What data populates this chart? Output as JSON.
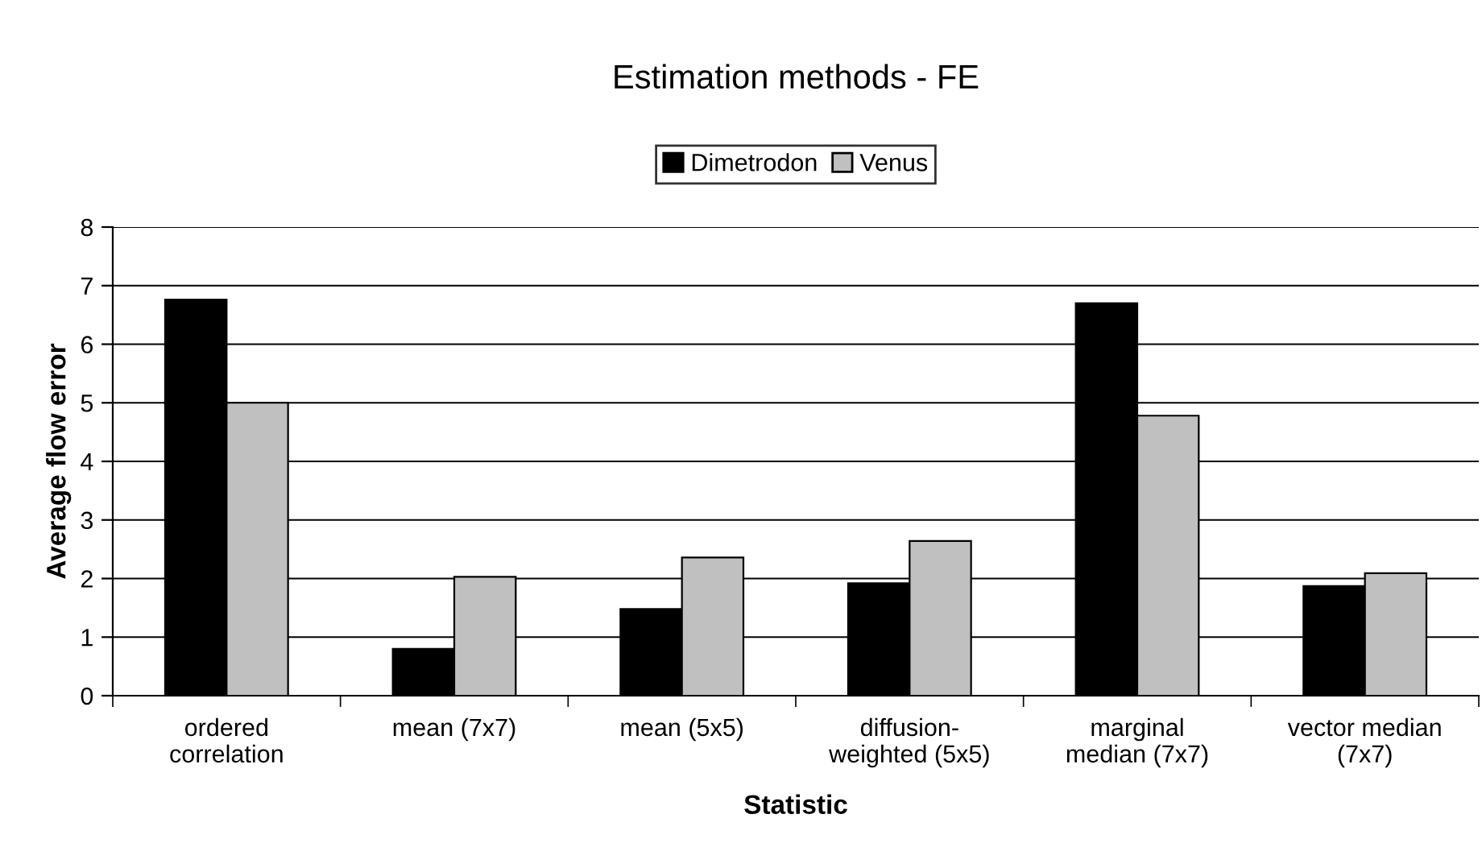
{
  "chart_data": {
    "type": "bar",
    "title": "Estimation methods - FE",
    "xlabel": "Statistic",
    "ylabel": "Average flow error",
    "categories": [
      "ordered\ncorrelation",
      "mean (7x7)",
      "mean (5x5)",
      "diffusion-\nweighted (5x5)",
      "marginal\nmedian (7x7)",
      "vector median\n(7x7)"
    ],
    "series": [
      {
        "name": "Dimetrodon",
        "color": "#000000",
        "values": [
          6.76,
          0.8,
          1.48,
          1.92,
          6.7,
          1.87
        ]
      },
      {
        "name": "Venus",
        "color": "#c0c0c0",
        "values": [
          5.0,
          2.03,
          2.36,
          2.64,
          4.78,
          2.09
        ]
      }
    ],
    "ylim": [
      0,
      8
    ],
    "yticks": [
      0,
      1,
      2,
      3,
      4,
      5,
      6,
      7,
      8
    ],
    "grid": "y",
    "legend": "top"
  }
}
